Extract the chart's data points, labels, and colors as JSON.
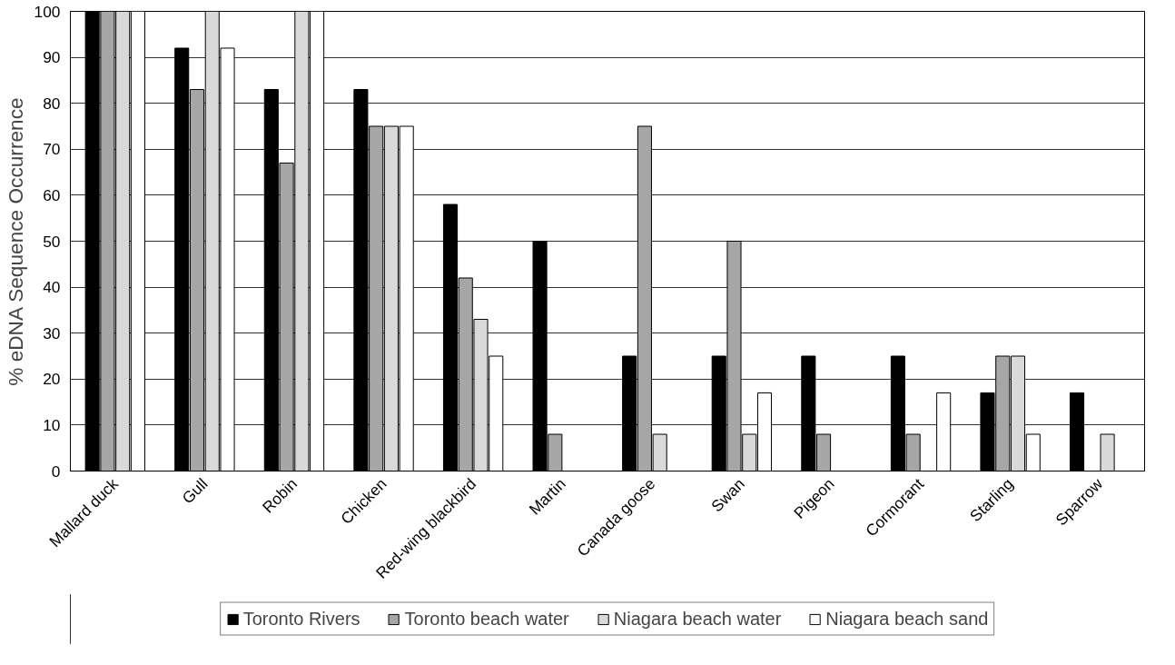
{
  "chart_data": {
    "type": "bar",
    "ylabel": "% eDNA Sequence Occurrence",
    "categories": [
      "Mallard duck",
      "Gull",
      "Robin",
      "Chicken",
      "Red-wing blackbird",
      "Martin",
      "Canada goose",
      "Swan",
      "Pigeon",
      "Cormorant",
      "Starling",
      "Sparrow"
    ],
    "series": [
      {
        "name": "Toronto Rivers",
        "color": "#000000",
        "values": [
          100,
          92,
          83,
          83,
          58,
          50,
          25,
          25,
          25,
          25,
          17,
          17
        ]
      },
      {
        "name": "Toronto beach water",
        "color": "#a6a6a6",
        "values": [
          100,
          83,
          67,
          75,
          42,
          8,
          75,
          50,
          8,
          8,
          25,
          0
        ]
      },
      {
        "name": "Niagara beach water",
        "color": "#d9d9d9",
        "values": [
          100,
          100,
          100,
          75,
          33,
          0,
          8,
          8,
          0,
          0,
          25,
          8
        ]
      },
      {
        "name": "Niagara beach sand",
        "color": "#ffffff",
        "values": [
          100,
          92,
          100,
          75,
          25,
          0,
          0,
          17,
          0,
          17,
          8,
          0
        ]
      }
    ],
    "ylim": [
      0,
      100
    ],
    "yticks": [
      0,
      10,
      20,
      30,
      40,
      50,
      60,
      70,
      80,
      90,
      100
    ],
    "grid": "y",
    "legend": "bottom"
  }
}
